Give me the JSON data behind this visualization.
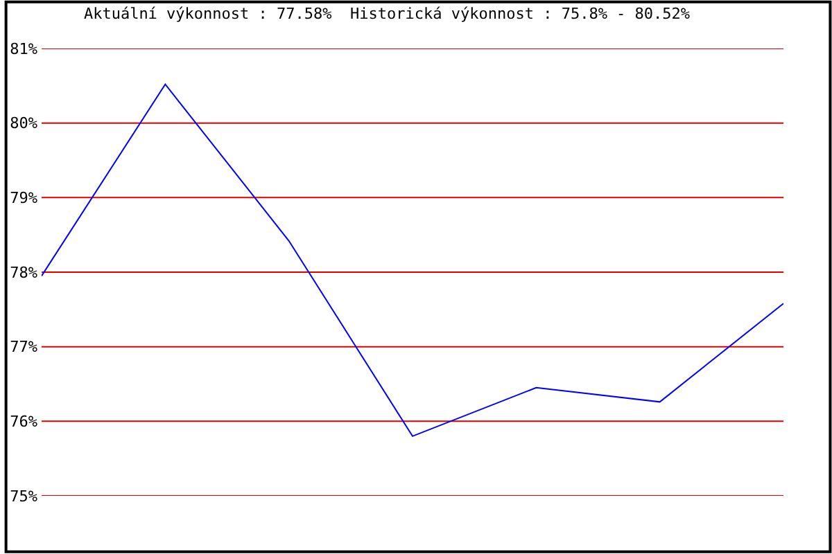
{
  "chart_data": {
    "type": "line",
    "title": "Aktuální výkonnost : 77.58%  Historická výkonnost : 75.8% - 80.52%",
    "categories": [
      null,
      null,
      null,
      null,
      null,
      null,
      null
    ],
    "series": [
      {
        "color": "#0000ff",
        "values": [
          77.95,
          80.52,
          78.42,
          75.8,
          76.45,
          76.26,
          77.58
        ]
      }
    ],
    "ylim": [
      75,
      81
    ],
    "yticks": [
      {
        "value": 75,
        "label": "75%"
      },
      {
        "value": 76,
        "label": "76%"
      },
      {
        "value": 77,
        "label": "77%"
      },
      {
        "value": 78,
        "label": "78%"
      },
      {
        "value": 79,
        "label": "79%"
      },
      {
        "value": 80,
        "label": "80%"
      },
      {
        "value": 81,
        "label": "81%"
      }
    ],
    "grid": "y",
    "marker": "none",
    "line_style": "solid",
    "tick_labels": "y"
  }
}
